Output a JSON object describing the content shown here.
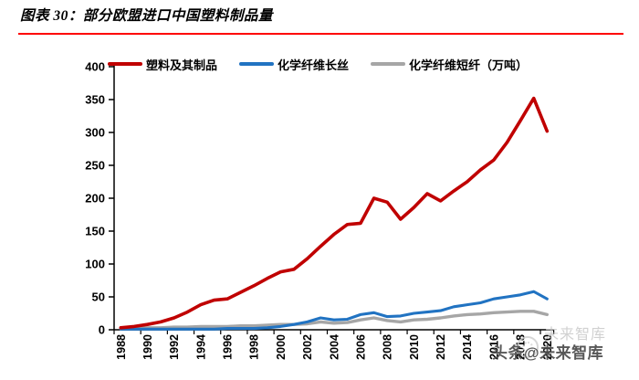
{
  "figure": {
    "title": "图表 30：部分欧盟进口中国塑料制品量",
    "accent_rule_color": "#fe0000"
  },
  "watermark": {
    "ghost_text": "未来智库",
    "ghost_logo": "circle-logo-icon",
    "main_text": "头条@未来智库"
  },
  "chart_data": {
    "type": "line",
    "title": "",
    "xlabel": "",
    "ylabel": "",
    "unit": "万吨",
    "ylim": [
      0,
      400
    ],
    "y_ticks": [
      0,
      50,
      100,
      150,
      200,
      250,
      300,
      350,
      400
    ],
    "grid": false,
    "legend_position": "top",
    "x": [
      1988,
      1989,
      1990,
      1991,
      1992,
      1993,
      1994,
      1995,
      1996,
      1997,
      1998,
      1999,
      2000,
      2001,
      2002,
      2003,
      2004,
      2005,
      2006,
      2007,
      2008,
      2009,
      2010,
      2011,
      2012,
      2013,
      2014,
      2015,
      2016,
      2017,
      2018,
      2019,
      2020
    ],
    "x_tick_labels": [
      "1988",
      "1990",
      "1992",
      "1994",
      "1996",
      "1998",
      "2000",
      "2002",
      "2004",
      "2006",
      "2008",
      "2010",
      "2012",
      "2014",
      "2016",
      "2018",
      "2020"
    ],
    "series": [
      {
        "name": "塑料及其制品",
        "color": "#c00000",
        "values": [
          3,
          5,
          8,
          12,
          18,
          27,
          38,
          45,
          47,
          57,
          67,
          78,
          88,
          92,
          108,
          127,
          145,
          160,
          162,
          200,
          194,
          168,
          186,
          207,
          196,
          211,
          225,
          243,
          258,
          285,
          318,
          352,
          302
        ]
      },
      {
        "name": "化学纤维长丝",
        "color": "#2173c2",
        "values": [
          1,
          1,
          1,
          1,
          1,
          1,
          1,
          1,
          2,
          2,
          2,
          3,
          5,
          8,
          12,
          18,
          15,
          16,
          23,
          26,
          20,
          21,
          25,
          27,
          29,
          35,
          38,
          41,
          47,
          50,
          53,
          58,
          47
        ]
      },
      {
        "name": "化学纤维短纤（万吨）",
        "color": "#a6a6a6",
        "values": [
          2,
          2,
          3,
          3,
          4,
          4,
          5,
          5,
          5,
          6,
          6,
          7,
          8,
          8,
          9,
          12,
          10,
          11,
          15,
          18,
          14,
          12,
          15,
          16,
          18,
          21,
          23,
          24,
          26,
          27,
          28,
          28,
          23
        ]
      }
    ]
  }
}
